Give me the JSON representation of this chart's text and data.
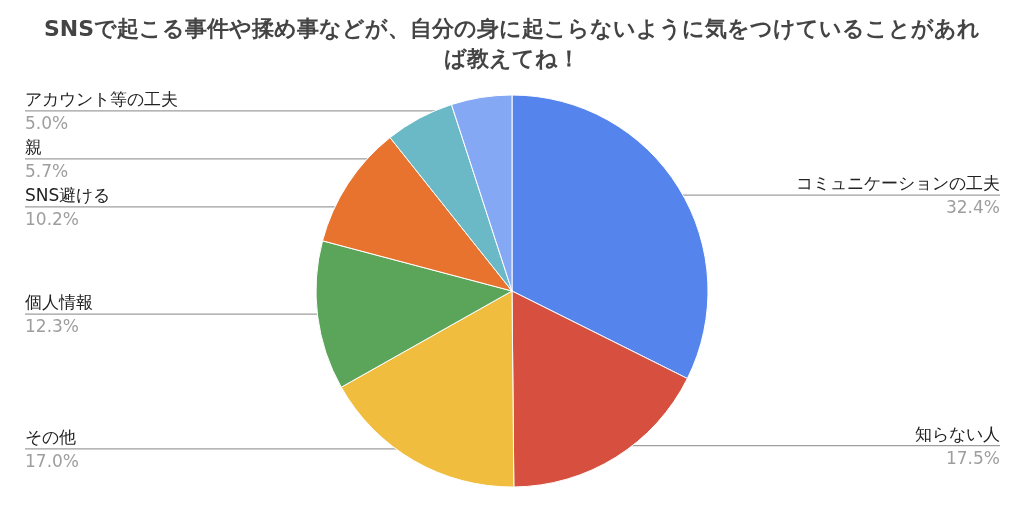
{
  "chart_data": {
    "type": "pie",
    "title": "SNSで起こる事件や揉め事などが、自分の身に起こらないように気をつけていることがあれば教えてね！",
    "categories": [
      "コミュニケーションの工夫",
      "知らない人",
      "その他",
      "個人情報",
      "SNS避ける",
      "親",
      "アカウント等の工夫"
    ],
    "values": [
      32.4,
      17.5,
      17.0,
      12.3,
      10.2,
      5.7,
      5.0
    ],
    "colors": [
      "#5584ec",
      "#d64f3f",
      "#f0bd3f",
      "#5ba55b",
      "#e8732f",
      "#6bb9c6",
      "#84a8f4"
    ],
    "value_labels": [
      "32.4%",
      "17.5%",
      "17.0%",
      "12.3%",
      "10.2%",
      "5.7%",
      "5.0%"
    ],
    "legend": false
  }
}
